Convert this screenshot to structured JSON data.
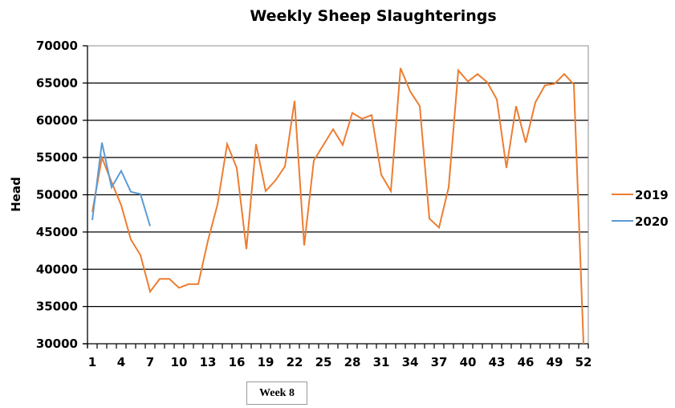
{
  "chart_data": {
    "type": "line",
    "title": "Weekly Sheep Slaughterings",
    "xlabel": "",
    "ylabel": "Head",
    "ylim": [
      30000,
      70000
    ],
    "yticks": [
      30000,
      35000,
      40000,
      45000,
      50000,
      55000,
      60000,
      65000,
      70000
    ],
    "xlim": [
      1,
      52
    ],
    "xtick_labels": [
      "1",
      "4",
      "7",
      "10",
      "13",
      "16",
      "19",
      "22",
      "25",
      "28",
      "31",
      "34",
      "37",
      "40",
      "43",
      "46",
      "49",
      "52"
    ],
    "grid": "horizontal",
    "legend_position": "right",
    "x": [
      1,
      2,
      3,
      4,
      5,
      6,
      7,
      8,
      9,
      10,
      11,
      12,
      13,
      14,
      15,
      16,
      17,
      18,
      19,
      20,
      21,
      22,
      23,
      24,
      25,
      26,
      27,
      28,
      29,
      30,
      31,
      32,
      33,
      34,
      35,
      36,
      37,
      38,
      39,
      40,
      41,
      42,
      43,
      44,
      45,
      46,
      47,
      48,
      49,
      50,
      51,
      52
    ],
    "series": [
      {
        "name": "2019",
        "color": "#ED7D31",
        "values": [
          47700,
          55000,
          51700,
          48600,
          44000,
          41900,
          37000,
          38700,
          38700,
          37500,
          38000,
          38000,
          43800,
          48700,
          56800,
          53600,
          42700,
          56800,
          50500,
          51900,
          53800,
          62600,
          43200,
          54600,
          56700,
          58800,
          56700,
          61000,
          60200,
          60700,
          52700,
          50500,
          67000,
          63900,
          61900,
          46800,
          45600,
          51000,
          66700,
          65200,
          66200,
          65100,
          62800,
          53600,
          61900,
          57000,
          62400,
          64700,
          64900,
          66200,
          64800,
          30000
        ]
      },
      {
        "name": "2020",
        "color": "#5B9BD5",
        "values": [
          46600,
          57000,
          51000,
          53200,
          50400,
          50100,
          45800
        ]
      }
    ],
    "annotations": [
      "Week 8"
    ]
  },
  "annotation": {
    "week_label": "Week 8"
  }
}
